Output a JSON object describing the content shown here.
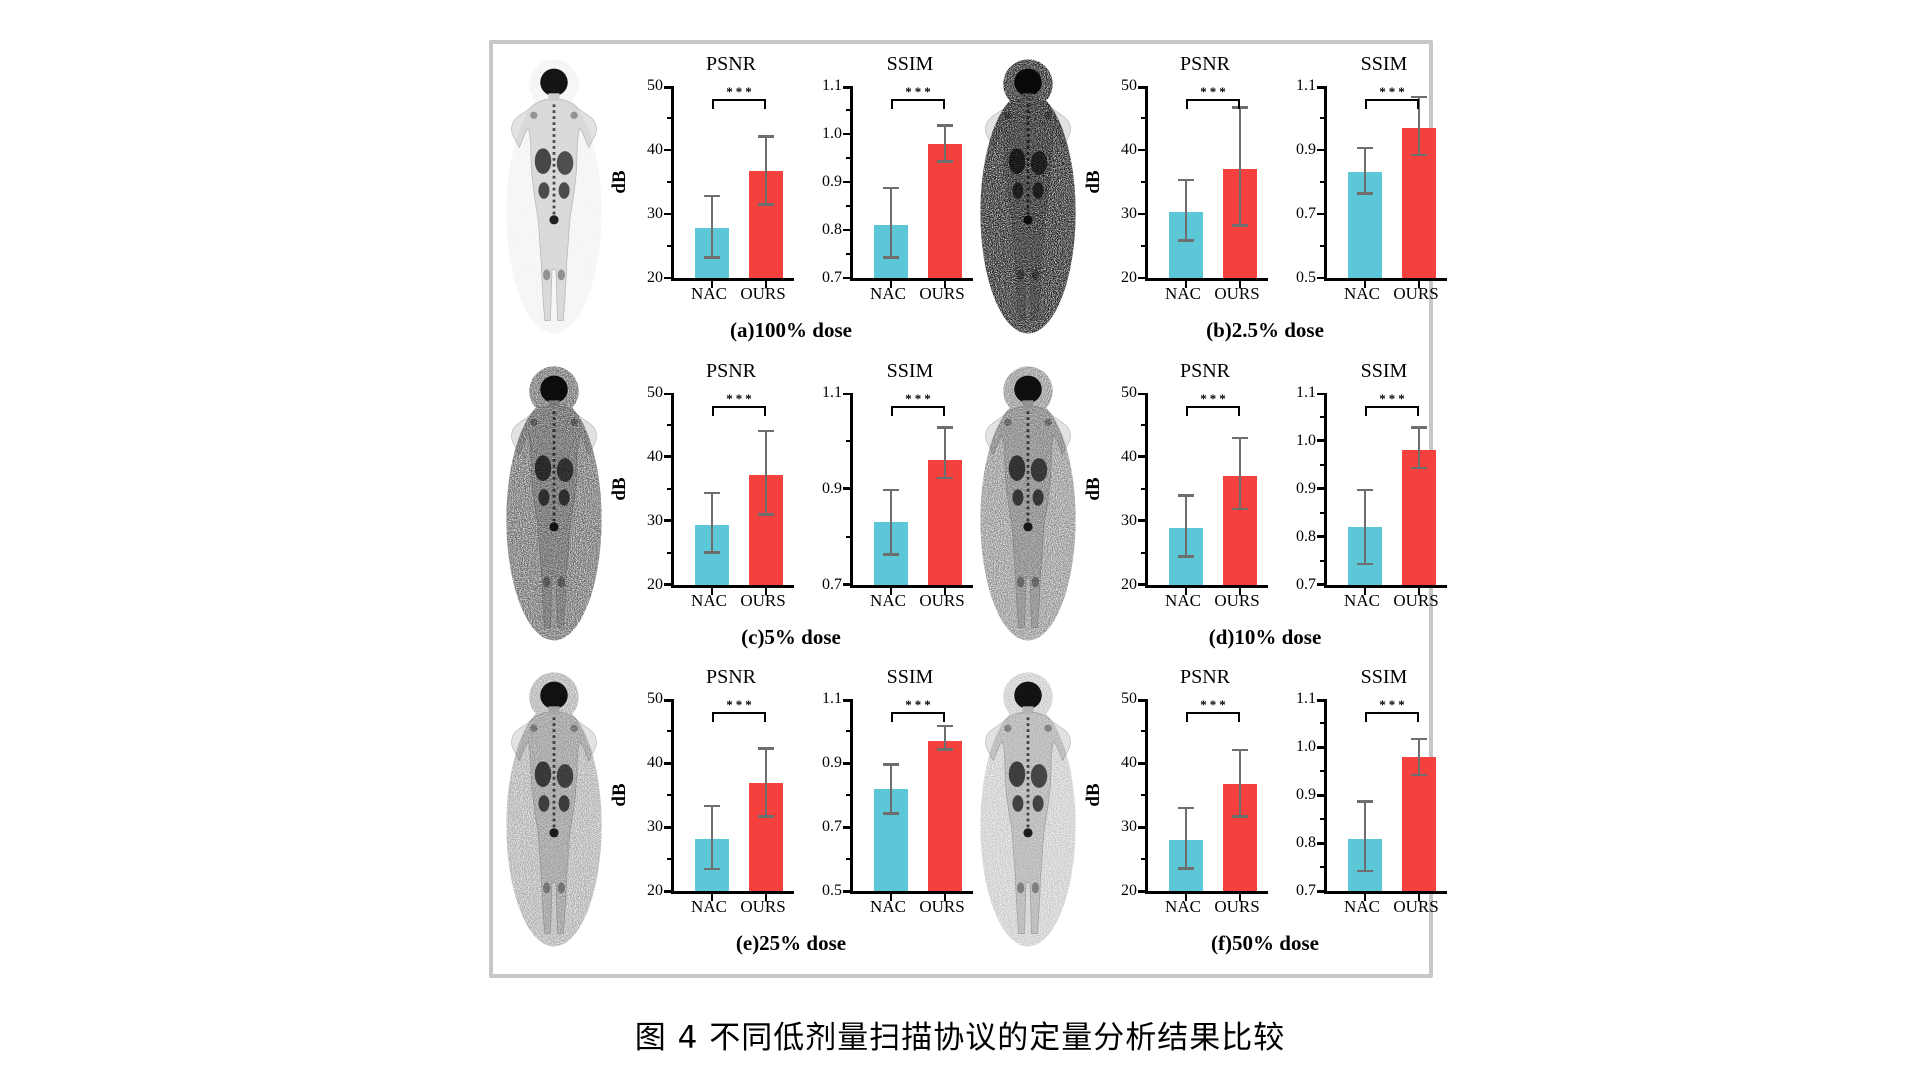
{
  "figure_caption": "图 4 不同低剂量扫描协议的定量分析结果比较",
  "legend_groups": [
    "NAC",
    "OURS"
  ],
  "significance_marker": "***",
  "colors": {
    "nac_bar": "#5bc7d7",
    "ours_bar": "#f5413e",
    "error_bar": "#6e6e6e",
    "axis": "#000000",
    "frame_border": "#c7c7c7",
    "background": "#ffffff"
  },
  "panels": [
    {
      "key": "a",
      "caption": "(a)100% dose",
      "body_image": "pet-body-scan-100pct",
      "noise_level": 0.05,
      "seed": 3
    },
    {
      "key": "b",
      "caption": "(b)2.5% dose",
      "body_image": "pet-body-scan-2.5pct",
      "noise_level": 0.9,
      "seed": 7
    },
    {
      "key": "c",
      "caption": "(c)5% dose",
      "body_image": "pet-body-scan-5pct",
      "noise_level": 0.6,
      "seed": 11
    },
    {
      "key": "d",
      "caption": "(d)10% dose",
      "body_image": "pet-body-scan-10pct",
      "noise_level": 0.45,
      "seed": 17
    },
    {
      "key": "e",
      "caption": "(e)25% dose",
      "body_image": "pet-body-scan-25pct",
      "noise_level": 0.33,
      "seed": 23
    },
    {
      "key": "f",
      "caption": "(f)50% dose",
      "body_image": "pet-body-scan-50pct",
      "noise_level": 0.22,
      "seed": 29
    }
  ],
  "chart_data": [
    {
      "panel": "a",
      "type": "bar",
      "title": "PSNR",
      "ylabel": "dB",
      "categories": [
        "NAC",
        "OURS"
      ],
      "values": [
        27.8,
        36.7
      ],
      "err_low": [
        23.0,
        31.3
      ],
      "err_high": [
        33.0,
        42.3
      ],
      "ylim": [
        20,
        50
      ],
      "yticks": [
        20,
        30,
        40,
        50
      ],
      "minor_yticks": [
        25,
        35,
        45
      ],
      "tick_decimals": 0,
      "significance": "***"
    },
    {
      "panel": "a",
      "type": "bar",
      "title": "SSIM",
      "ylabel": "",
      "categories": [
        "NAC",
        "OURS"
      ],
      "values": [
        0.81,
        0.98
      ],
      "err_low": [
        0.74,
        0.94
      ],
      "err_high": [
        0.89,
        1.02
      ],
      "ylim": [
        0.7,
        1.1
      ],
      "yticks": [
        0.7,
        0.8,
        0.9,
        1.0,
        1.1
      ],
      "minor_yticks": [
        0.75,
        0.85,
        0.95,
        1.05
      ],
      "tick_decimals": 1,
      "significance": "***"
    },
    {
      "panel": "b",
      "type": "bar",
      "title": "PSNR",
      "ylabel": "dB",
      "categories": [
        "NAC",
        "OURS"
      ],
      "values": [
        30.3,
        37.0
      ],
      "err_low": [
        25.7,
        28.0
      ],
      "err_high": [
        35.5,
        46.8
      ],
      "ylim": [
        20,
        50
      ],
      "yticks": [
        20,
        30,
        40,
        50
      ],
      "minor_yticks": [
        25,
        35,
        45
      ],
      "tick_decimals": 0,
      "significance": "***"
    },
    {
      "panel": "b",
      "type": "bar",
      "title": "SSIM",
      "ylabel": "",
      "categories": [
        "NAC",
        "OURS"
      ],
      "values": [
        0.83,
        0.97
      ],
      "err_low": [
        0.76,
        0.88
      ],
      "err_high": [
        0.91,
        1.07
      ],
      "ylim": [
        0.5,
        1.1
      ],
      "yticks": [
        0.5,
        0.7,
        0.9,
        1.1
      ],
      "minor_yticks": [
        0.6,
        0.8,
        1.0
      ],
      "tick_decimals": 1,
      "significance": "***"
    },
    {
      "panel": "c",
      "type": "bar",
      "title": "PSNR",
      "ylabel": "dB",
      "categories": [
        "NAC",
        "OURS"
      ],
      "values": [
        29.3,
        37.2
      ],
      "err_low": [
        24.8,
        30.8
      ],
      "err_high": [
        34.5,
        44.2
      ],
      "ylim": [
        20,
        50
      ],
      "yticks": [
        20,
        30,
        40,
        50
      ],
      "minor_yticks": [
        25,
        35,
        45
      ],
      "tick_decimals": 0,
      "significance": "***"
    },
    {
      "panel": "c",
      "type": "bar",
      "title": "SSIM",
      "ylabel": "",
      "categories": [
        "NAC",
        "OURS"
      ],
      "values": [
        0.83,
        0.96
      ],
      "err_low": [
        0.76,
        0.92
      ],
      "err_high": [
        0.9,
        1.03
      ],
      "ylim": [
        0.7,
        1.1
      ],
      "yticks": [
        0.7,
        0.9,
        1.1
      ],
      "minor_yticks": [
        0.8,
        1.0
      ],
      "tick_decimals": 1,
      "significance": "***"
    },
    {
      "panel": "d",
      "type": "bar",
      "title": "PSNR",
      "ylabel": "dB",
      "categories": [
        "NAC",
        "OURS"
      ],
      "values": [
        28.8,
        37.0
      ],
      "err_low": [
        24.2,
        31.6
      ],
      "err_high": [
        34.1,
        43.1
      ],
      "ylim": [
        20,
        50
      ],
      "yticks": [
        20,
        30,
        40,
        50
      ],
      "minor_yticks": [
        25,
        35,
        45
      ],
      "tick_decimals": 0,
      "significance": "***"
    },
    {
      "panel": "d",
      "type": "bar",
      "title": "SSIM",
      "ylabel": "",
      "categories": [
        "NAC",
        "OURS"
      ],
      "values": [
        0.82,
        0.98
      ],
      "err_low": [
        0.74,
        0.94
      ],
      "err_high": [
        0.9,
        1.03
      ],
      "ylim": [
        0.7,
        1.1
      ],
      "yticks": [
        0.7,
        0.8,
        0.9,
        1.0,
        1.1
      ],
      "minor_yticks": [
        0.75,
        0.85,
        0.95,
        1.05
      ],
      "tick_decimals": 1,
      "significance": "***"
    },
    {
      "panel": "e",
      "type": "bar",
      "title": "PSNR",
      "ylabel": "dB",
      "categories": [
        "NAC",
        "OURS"
      ],
      "values": [
        28.2,
        37.0
      ],
      "err_low": [
        23.3,
        31.5
      ],
      "err_high": [
        33.5,
        42.5
      ],
      "ylim": [
        20,
        50
      ],
      "yticks": [
        20,
        30,
        40,
        50
      ],
      "minor_yticks": [
        25,
        35,
        45
      ],
      "tick_decimals": 0,
      "significance": "***"
    },
    {
      "panel": "e",
      "type": "bar",
      "title": "SSIM",
      "ylabel": "",
      "categories": [
        "NAC",
        "OURS"
      ],
      "values": [
        0.82,
        0.97
      ],
      "err_low": [
        0.74,
        0.94
      ],
      "err_high": [
        0.9,
        1.02
      ],
      "ylim": [
        0.5,
        1.1
      ],
      "yticks": [
        0.5,
        0.7,
        0.9,
        1.1
      ],
      "minor_yticks": [
        0.6,
        0.8,
        1.0
      ],
      "tick_decimals": 1,
      "significance": "***"
    },
    {
      "panel": "f",
      "type": "bar",
      "title": "PSNR",
      "ylabel": "dB",
      "categories": [
        "NAC",
        "OURS"
      ],
      "values": [
        28.0,
        36.7
      ],
      "err_low": [
        23.4,
        31.5
      ],
      "err_high": [
        33.2,
        42.3
      ],
      "ylim": [
        20,
        50
      ],
      "yticks": [
        20,
        30,
        40,
        50
      ],
      "minor_yticks": [
        25,
        35,
        45
      ],
      "tick_decimals": 0,
      "significance": "***"
    },
    {
      "panel": "f",
      "type": "bar",
      "title": "SSIM",
      "ylabel": "",
      "categories": [
        "NAC",
        "OURS"
      ],
      "values": [
        0.81,
        0.98
      ],
      "err_low": [
        0.74,
        0.94
      ],
      "err_high": [
        0.89,
        1.02
      ],
      "ylim": [
        0.7,
        1.1
      ],
      "yticks": [
        0.7,
        0.8,
        0.9,
        1.0,
        1.1
      ],
      "minor_yticks": [
        0.75,
        0.85,
        0.95,
        1.05
      ],
      "tick_decimals": 1,
      "significance": "***"
    }
  ]
}
